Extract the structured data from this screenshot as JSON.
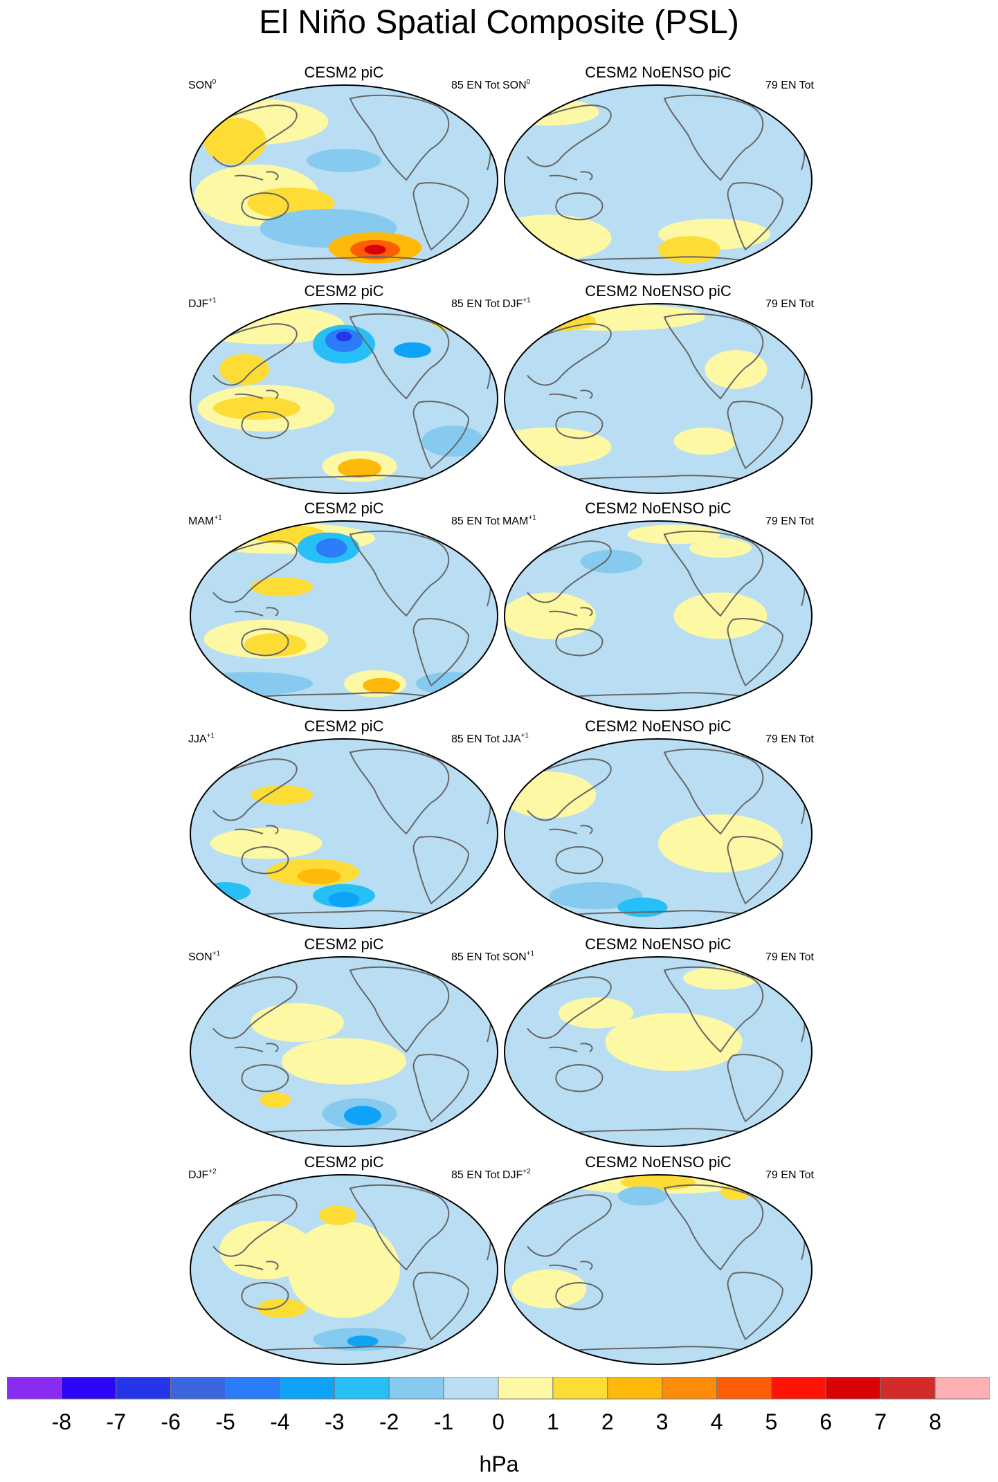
{
  "title": "El Niño Spatial Composite (PSL)",
  "colorbar": {
    "units": "hPa",
    "ticks": [
      "-8",
      "-7",
      "-6",
      "-5",
      "-4",
      "-3",
      "-2",
      "-1",
      "0",
      "1",
      "2",
      "3",
      "4",
      "5",
      "6",
      "7",
      "8"
    ],
    "colors": [
      "#8a2bf2",
      "#2c06f5",
      "#2535ea",
      "#3c66e0",
      "#2a7cf7",
      "#0fa3f8",
      "#26c0f6",
      "#86cbef",
      "#b9def3",
      "#fdf8a3",
      "#fedc36",
      "#feb90b",
      "#fe8c0a",
      "#fe5d08",
      "#fe1407",
      "#d90206",
      "#d32a2a",
      "#feb0b5"
    ]
  },
  "columns": [
    {
      "model": "CESM2 piC",
      "count": "85 EN Tot"
    },
    {
      "model": "CESM2 NoENSO piC",
      "count": "79 EN Tot"
    }
  ],
  "rows": [
    {
      "season": "SON",
      "sup": "0"
    },
    {
      "season": "DJF",
      "sup": "+1"
    },
    {
      "season": "MAM",
      "sup": "+1"
    },
    {
      "season": "JJA",
      "sup": "+1"
    },
    {
      "season": "SON",
      "sup": "+1"
    },
    {
      "season": "DJF",
      "sup": "+2"
    }
  ],
  "panels": [
    [
      {
        "blobs": [
          [
            0.2,
            0.2,
            0.25,
            0.12,
            1
          ],
          [
            0.22,
            0.58,
            0.2,
            0.16,
            1
          ],
          [
            0.15,
            0.3,
            0.1,
            0.12,
            2
          ],
          [
            0.33,
            0.62,
            0.14,
            0.08,
            2
          ],
          [
            0.5,
            0.4,
            0.12,
            0.06,
            -1
          ],
          [
            0.45,
            0.75,
            0.22,
            0.1,
            -1
          ],
          [
            0.6,
            0.85,
            0.15,
            0.08,
            3
          ],
          [
            0.6,
            0.86,
            0.08,
            0.05,
            5
          ],
          [
            0.6,
            0.86,
            0.035,
            0.025,
            7
          ]
        ]
      },
      {
        "blobs": [
          [
            0.15,
            0.8,
            0.2,
            0.12,
            1
          ],
          [
            0.68,
            0.78,
            0.18,
            0.08,
            1
          ],
          [
            0.6,
            0.86,
            0.1,
            0.07,
            2
          ],
          [
            0.15,
            0.15,
            0.16,
            0.07,
            1
          ]
        ]
      }
    ],
    [
      {
        "blobs": [
          [
            0.25,
            0.12,
            0.25,
            0.1,
            1
          ],
          [
            0.25,
            0.55,
            0.22,
            0.12,
            1
          ],
          [
            0.22,
            0.55,
            0.14,
            0.06,
            2
          ],
          [
            0.18,
            0.35,
            0.08,
            0.08,
            2
          ],
          [
            0.5,
            0.22,
            0.1,
            0.1,
            -2
          ],
          [
            0.5,
            0.2,
            0.06,
            0.06,
            -4
          ],
          [
            0.5,
            0.18,
            0.025,
            0.025,
            -6
          ],
          [
            0.72,
            0.25,
            0.06,
            0.04,
            -3
          ],
          [
            0.55,
            0.85,
            0.12,
            0.08,
            1
          ],
          [
            0.55,
            0.86,
            0.07,
            0.05,
            3
          ],
          [
            0.85,
            0.1,
            0.07,
            0.05,
            2
          ],
          [
            0.85,
            0.72,
            0.1,
            0.08,
            -1
          ]
        ]
      },
      {
        "blobs": [
          [
            0.15,
            0.75,
            0.2,
            0.1,
            1
          ],
          [
            0.35,
            0.08,
            0.3,
            0.07,
            1
          ],
          [
            0.2,
            0.1,
            0.1,
            0.05,
            2
          ],
          [
            0.65,
            0.72,
            0.1,
            0.07,
            1
          ],
          [
            0.75,
            0.35,
            0.1,
            0.1,
            1
          ]
        ]
      }
    ],
    [
      {
        "blobs": [
          [
            0.3,
            0.1,
            0.3,
            0.08,
            1
          ],
          [
            0.32,
            0.08,
            0.12,
            0.05,
            2
          ],
          [
            0.25,
            0.62,
            0.2,
            0.1,
            1
          ],
          [
            0.28,
            0.65,
            0.1,
            0.06,
            2
          ],
          [
            0.3,
            0.35,
            0.1,
            0.05,
            2
          ],
          [
            0.45,
            0.15,
            0.1,
            0.08,
            -2
          ],
          [
            0.46,
            0.15,
            0.05,
            0.05,
            -4
          ],
          [
            0.6,
            0.85,
            0.1,
            0.07,
            1
          ],
          [
            0.62,
            0.86,
            0.06,
            0.04,
            3
          ],
          [
            0.2,
            0.85,
            0.2,
            0.06,
            -1
          ],
          [
            0.85,
            0.85,
            0.12,
            0.06,
            -1
          ]
        ]
      },
      {
        "blobs": [
          [
            0.35,
            0.22,
            0.1,
            0.06,
            -1
          ],
          [
            0.55,
            0.08,
            0.15,
            0.05,
            1
          ],
          [
            0.7,
            0.15,
            0.1,
            0.05,
            1
          ],
          [
            0.15,
            0.5,
            0.15,
            0.12,
            1
          ],
          [
            0.7,
            0.5,
            0.15,
            0.12,
            1
          ]
        ]
      }
    ],
    [
      {
        "blobs": [
          [
            0.25,
            0.55,
            0.18,
            0.08,
            1
          ],
          [
            0.3,
            0.3,
            0.1,
            0.05,
            2
          ],
          [
            0.4,
            0.7,
            0.15,
            0.07,
            2
          ],
          [
            0.42,
            0.72,
            0.07,
            0.04,
            3
          ],
          [
            0.5,
            0.82,
            0.1,
            0.06,
            -2
          ],
          [
            0.5,
            0.84,
            0.05,
            0.04,
            -3
          ],
          [
            0.12,
            0.8,
            0.08,
            0.05,
            -2
          ]
        ]
      },
      {
        "blobs": [
          [
            0.15,
            0.3,
            0.15,
            0.12,
            1
          ],
          [
            0.7,
            0.55,
            0.2,
            0.15,
            1
          ],
          [
            0.3,
            0.82,
            0.15,
            0.07,
            -1
          ],
          [
            0.45,
            0.88,
            0.08,
            0.05,
            -2
          ]
        ]
      }
    ],
    [
      {
        "blobs": [
          [
            0.35,
            0.35,
            0.15,
            0.1,
            1
          ],
          [
            0.5,
            0.55,
            0.2,
            0.12,
            1
          ],
          [
            0.28,
            0.75,
            0.05,
            0.04,
            2
          ],
          [
            0.55,
            0.82,
            0.12,
            0.08,
            -1
          ],
          [
            0.56,
            0.83,
            0.06,
            0.05,
            -3
          ]
        ]
      },
      {
        "blobs": [
          [
            0.55,
            0.45,
            0.22,
            0.15,
            1
          ],
          [
            0.7,
            0.12,
            0.12,
            0.06,
            1
          ],
          [
            0.3,
            0.3,
            0.12,
            0.08,
            1
          ]
        ]
      }
    ],
    [
      {
        "blobs": [
          [
            0.25,
            0.4,
            0.15,
            0.15,
            1
          ],
          [
            0.5,
            0.5,
            0.18,
            0.25,
            1
          ],
          [
            0.48,
            0.22,
            0.06,
            0.05,
            2
          ],
          [
            0.3,
            0.7,
            0.08,
            0.05,
            2
          ],
          [
            0.55,
            0.86,
            0.15,
            0.06,
            -1
          ],
          [
            0.56,
            0.87,
            0.05,
            0.03,
            -3
          ]
        ]
      },
      {
        "blobs": [
          [
            0.5,
            0.05,
            0.3,
            0.06,
            1
          ],
          [
            0.5,
            0.05,
            0.12,
            0.04,
            2
          ],
          [
            0.75,
            0.1,
            0.05,
            0.04,
            2
          ],
          [
            0.45,
            0.12,
            0.08,
            0.05,
            -1
          ],
          [
            0.15,
            0.6,
            0.12,
            0.1,
            1
          ]
        ]
      }
    ]
  ]
}
